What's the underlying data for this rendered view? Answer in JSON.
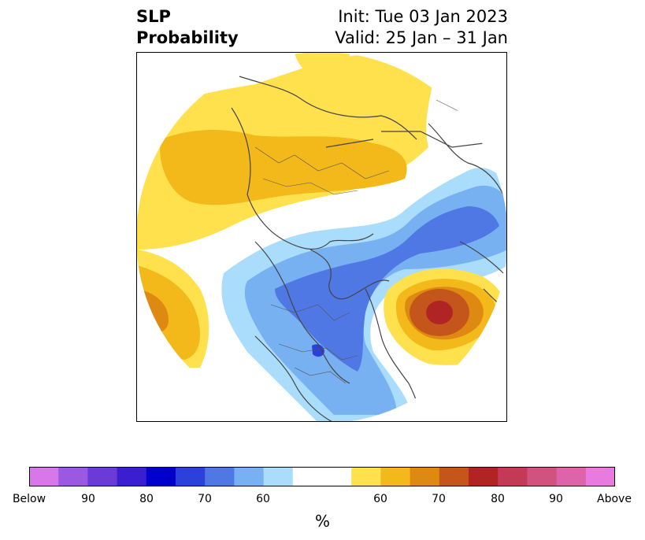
{
  "header": {
    "title_line1": "SLP",
    "title_line2": "Probability",
    "init": "Init: Tue 03 Jan 2023",
    "valid": "Valid: 25 Jan – 31 Jan"
  },
  "colorbar": {
    "colors": [
      "#d877e8",
      "#9b58e0",
      "#6b3bd8",
      "#3a1ed0",
      "#0000cc",
      "#2b41d9",
      "#4f78e4",
      "#78b1f2",
      "#aadcfb",
      "#ffffff",
      "#ffe14e",
      "#f3b81a",
      "#de8a12",
      "#c4561b",
      "#b02424",
      "#c23a55",
      "#cf527f",
      "#dd64a9",
      "#e97be0"
    ],
    "tick_labels": [
      "Below",
      "90",
      "80",
      "70",
      "60",
      "60",
      "70",
      "80",
      "90",
      "Above"
    ],
    "unit": "%"
  },
  "legend": {
    "below_colors": [
      "#aadcfb",
      "#78b1f2",
      "#4f78e4",
      "#2b41d9"
    ],
    "above_colors": [
      "#ffe14e",
      "#f3b81a",
      "#de8a12",
      "#c4561b",
      "#b02424"
    ]
  }
}
